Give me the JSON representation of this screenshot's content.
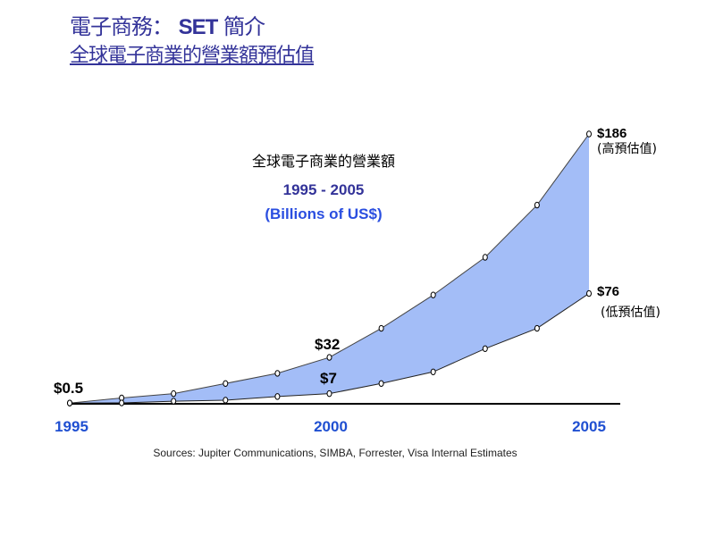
{
  "slide": {
    "title_prefix": "電子商務：",
    "title_bold": "SET",
    "title_suffix": "簡介",
    "subtitle": "全球電子商業的營業額預估值"
  },
  "colors": {
    "title": "#333399",
    "fill": "#a3bdf7",
    "year": "#1f4fd1",
    "billions": "#2a4ee0"
  },
  "chart_data": {
    "type": "area",
    "title": "全球電子商業的營業額",
    "subtitle": "1995 - 2005",
    "unit_label": "(Billions of US$)",
    "x": [
      1995,
      1996,
      1997,
      1998,
      1999,
      2000,
      2001,
      2002,
      2003,
      2004,
      2005
    ],
    "x_tick_labels": [
      "1995",
      "2000",
      "2005"
    ],
    "series": [
      {
        "name": "高預估值",
        "values": [
          0.5,
          4,
          7,
          14,
          21,
          32,
          52,
          75,
          101,
          137,
          186
        ]
      },
      {
        "name": "低預估值",
        "values": [
          0.5,
          0.6,
          1.8,
          2.5,
          5,
          7,
          14,
          22,
          38,
          52,
          76
        ]
      }
    ],
    "ylim": [
      0,
      186
    ],
    "annotations": [
      {
        "text": "$0.5"
      },
      {
        "text": "$32"
      },
      {
        "text": "$7"
      },
      {
        "text": "$186"
      },
      {
        "text": "(高預估值)"
      },
      {
        "text": "$76"
      },
      {
        "text": "(低預估值)"
      }
    ],
    "source": "Sources: Jupiter Communications, SIMBA, Forrester, Visa Internal Estimates"
  }
}
